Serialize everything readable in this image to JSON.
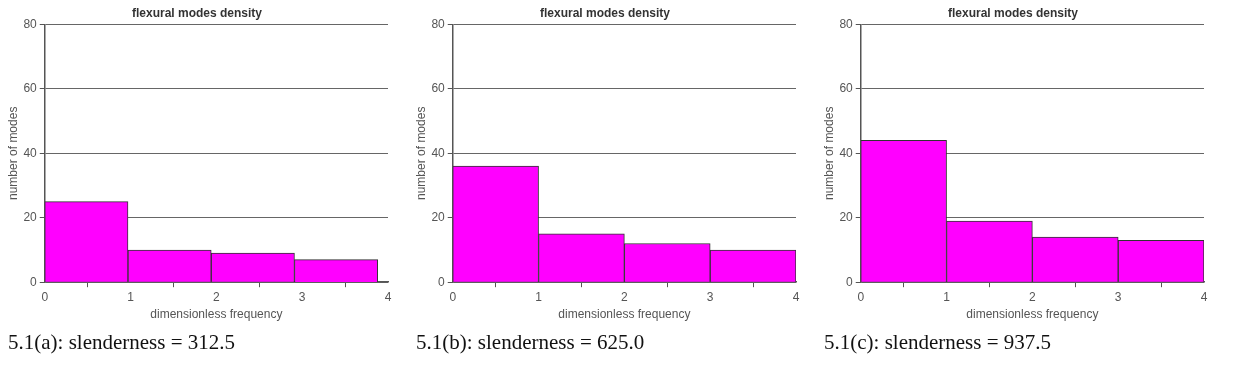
{
  "chart_data": [
    {
      "type": "histogram",
      "title": "flexural modes density",
      "xlabel": "dimensionless frequency",
      "ylabel": "number of modes",
      "bins": [
        0,
        0.97,
        1.94,
        2.91,
        3.88
      ],
      "values": [
        25,
        10,
        9,
        7
      ],
      "color": "#ff00ff",
      "xlim": [
        0,
        4
      ],
      "xticks": [
        0,
        1,
        2,
        3,
        4
      ],
      "ylim": [
        0,
        80
      ],
      "yticks": [
        0,
        20,
        40,
        60,
        80
      ],
      "grid": "y",
      "annotations": [
        "5.1(a): slenderness = 312.5"
      ]
    },
    {
      "type": "histogram",
      "title": "flexural modes density",
      "xlabel": "dimensionless frequency",
      "ylabel": "number of modes",
      "bins": [
        0,
        1,
        2,
        3,
        4
      ],
      "values": [
        36,
        15,
        12,
        10
      ],
      "color": "#ff00ff",
      "xlim": [
        0,
        4
      ],
      "xticks": [
        0,
        1,
        2,
        3,
        4
      ],
      "ylim": [
        0,
        80
      ],
      "yticks": [
        0,
        20,
        40,
        60,
        80
      ],
      "grid": "y",
      "annotations": [
        "5.1(b): slenderness = 625.0"
      ]
    },
    {
      "type": "histogram",
      "title": "flexural modes density",
      "xlabel": "dimensionless frequency",
      "ylabel": "number of modes",
      "bins": [
        0,
        1,
        2,
        3,
        4
      ],
      "values": [
        44,
        19,
        14,
        13
      ],
      "color": "#ff00ff",
      "xlim": [
        0,
        4
      ],
      "xticks": [
        0,
        1,
        2,
        3,
        4
      ],
      "ylim": [
        0,
        80
      ],
      "yticks": [
        0,
        20,
        40,
        60,
        80
      ],
      "grid": "y",
      "annotations": [
        "5.1(c): slenderness = 937.5"
      ]
    }
  ]
}
